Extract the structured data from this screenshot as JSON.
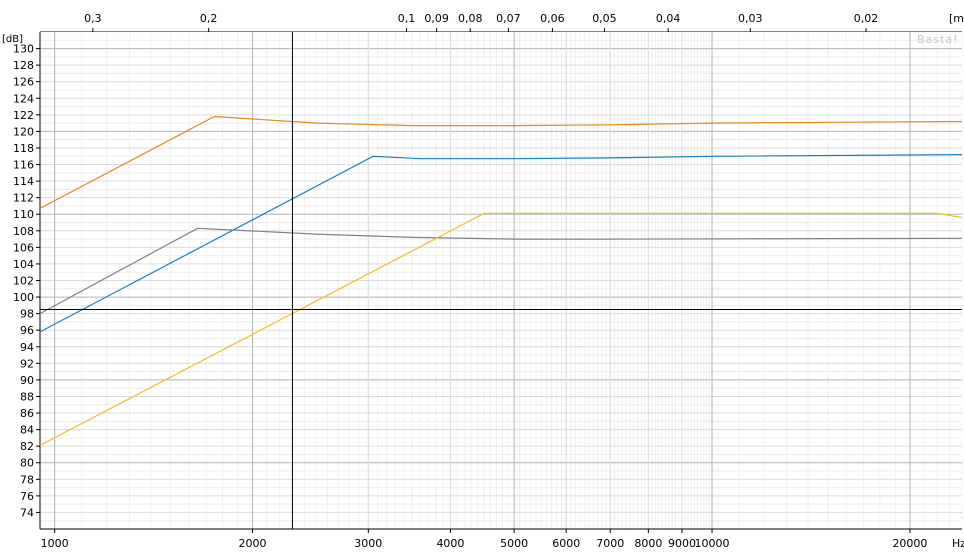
{
  "chart_data": {
    "type": "line",
    "title": "",
    "watermark": "Basta!",
    "y_unit": "[dB]",
    "x_unit": "Hz",
    "top_unit": "[m]",
    "xscale": "log",
    "xlim": [
      950,
      24000
    ],
    "ylim": [
      72,
      132
    ],
    "grid": true,
    "y_ticks": [
      74,
      76,
      78,
      80,
      82,
      84,
      86,
      88,
      90,
      92,
      94,
      96,
      98,
      100,
      102,
      104,
      106,
      108,
      110,
      112,
      114,
      116,
      118,
      120,
      122,
      124,
      126,
      128,
      130
    ],
    "x_ticks": [
      {
        "value": 1000,
        "label": "1000"
      },
      {
        "value": 2000,
        "label": "2000"
      },
      {
        "value": 3000,
        "label": "3000"
      },
      {
        "value": 4000,
        "label": "4000"
      },
      {
        "value": 5000,
        "label": "5000"
      },
      {
        "value": 6000,
        "label": "6000"
      },
      {
        "value": 7000,
        "label": "7000"
      },
      {
        "value": 8000,
        "label": "8000"
      },
      {
        "value": 9000,
        "label": "9000"
      },
      {
        "value": 10000,
        "label": "10000"
      },
      {
        "value": 20000,
        "label": "20000"
      }
    ],
    "top_ticks": [
      {
        "value": 0.3,
        "label": "0,3"
      },
      {
        "value": 0.2,
        "label": "0,2"
      },
      {
        "value": 0.1,
        "label": "0,1"
      },
      {
        "value": 0.09,
        "label": "0,09"
      },
      {
        "value": 0.08,
        "label": "0,08"
      },
      {
        "value": 0.07,
        "label": "0,07"
      },
      {
        "value": 0.06,
        "label": "0,06"
      },
      {
        "value": 0.05,
        "label": "0,05"
      },
      {
        "value": 0.04,
        "label": "0,04"
      },
      {
        "value": 0.03,
        "label": "0,03"
      },
      {
        "value": 0.02,
        "label": "0,02"
      }
    ],
    "cursor": {
      "x": 2300,
      "y": 98.5
    },
    "series": [
      {
        "color": "#e08a1e",
        "x": [
          950,
          1750,
          2500,
          3500,
          5000,
          7000,
          10000,
          15000,
          24000
        ],
        "y": [
          110.7,
          121.8,
          121.0,
          120.7,
          120.7,
          120.8,
          121.0,
          121.1,
          121.2
        ]
      },
      {
        "color": "#1a7fc0",
        "x": [
          950,
          3050,
          3600,
          5000,
          7000,
          10000,
          24000
        ],
        "y": [
          95.8,
          117.0,
          116.7,
          116.7,
          116.8,
          117.0,
          117.2
        ]
      },
      {
        "color": "#808080",
        "x": [
          950,
          1650,
          2500,
          3500,
          5000,
          7000,
          24000
        ],
        "y": [
          98.0,
          108.3,
          107.6,
          107.2,
          107.0,
          107.0,
          107.1
        ]
      },
      {
        "color": "#f0c020",
        "x": [
          950,
          4500,
          6000,
          10000,
          22000,
          24000
        ],
        "y": [
          82.1,
          110.1,
          110.1,
          110.1,
          110.1,
          109.6
        ]
      }
    ]
  }
}
